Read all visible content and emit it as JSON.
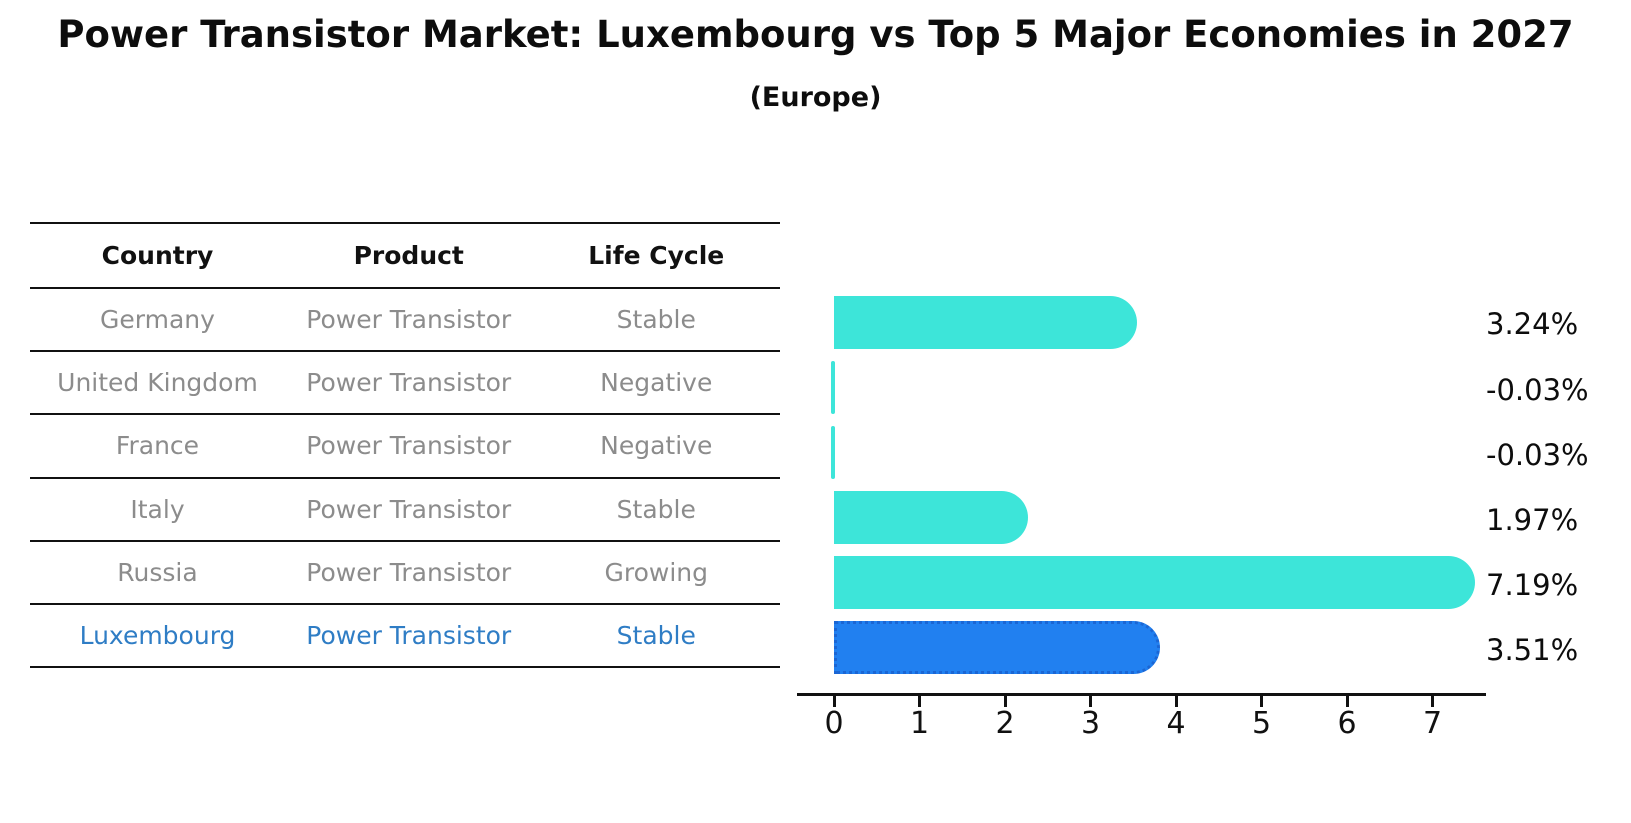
{
  "title": "Power Transistor Market: Luxembourg vs Top 5 Major Economies in 2027",
  "subtitle": "(Europe)",
  "table": {
    "headers": [
      "Country",
      "Product",
      "Life Cycle"
    ],
    "rows": [
      {
        "country": "Germany",
        "product": "Power Transistor",
        "life_cycle": "Stable",
        "highlight": false
      },
      {
        "country": "United Kingdom",
        "product": "Power Transistor",
        "life_cycle": "Negative",
        "highlight": false
      },
      {
        "country": "France",
        "product": "Power Transistor",
        "life_cycle": "Negative",
        "highlight": false
      },
      {
        "country": "Italy",
        "product": "Power Transistor",
        "life_cycle": "Stable",
        "highlight": false
      },
      {
        "country": "Russia",
        "product": "Power Transistor",
        "life_cycle": "Growing",
        "highlight": false
      },
      {
        "country": "Luxembourg",
        "product": "Power Transistor",
        "life_cycle": "Stable",
        "highlight": true
      }
    ]
  },
  "chart_data": {
    "type": "bar",
    "orientation": "horizontal",
    "title": "Power Transistor Market: Luxembourg vs Top 5 Major Economies in 2027",
    "subtitle": "(Europe)",
    "categories": [
      "Germany",
      "United Kingdom",
      "France",
      "Italy",
      "Russia",
      "Luxembourg"
    ],
    "values": [
      3.24,
      -0.03,
      -0.03,
      1.97,
      7.19,
      3.51
    ],
    "value_labels": [
      "3.24%",
      "-0.03%",
      "-0.03%",
      "1.97%",
      "7.19%",
      "3.51%"
    ],
    "xticks": [
      0,
      1,
      2,
      3,
      4,
      5,
      6,
      7
    ],
    "xlim": [
      0,
      7.6
    ],
    "xlabel": "",
    "ylabel": "",
    "grid": false,
    "legend": false,
    "bar_color": "#3de5d9",
    "highlight_index": 5,
    "highlight_bar_color": "#2180f0",
    "highlight_border_color": "#1b66d4",
    "highlight_text_color": "#2f7dc5"
  }
}
